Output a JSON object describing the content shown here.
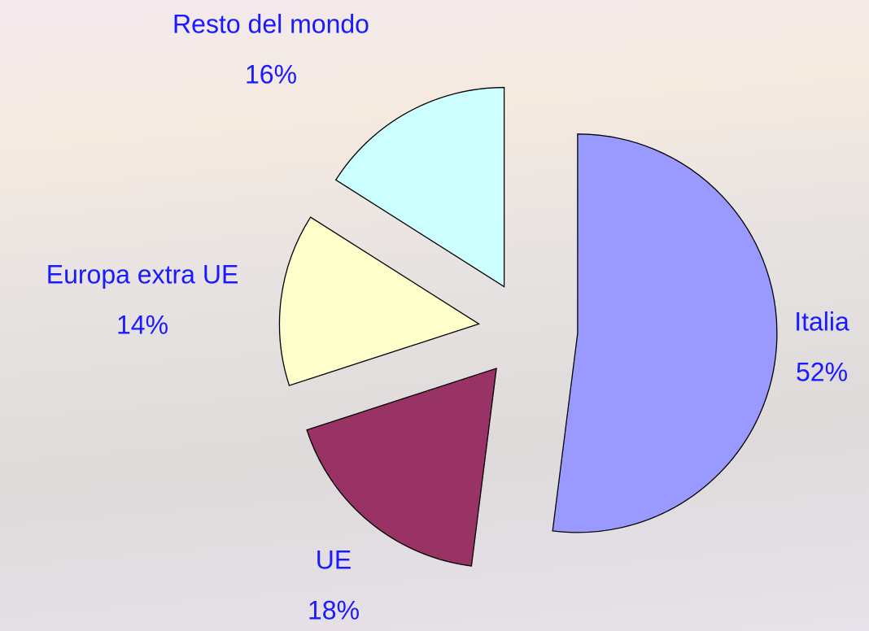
{
  "chart_data": {
    "type": "pie",
    "categories": [
      "Italia",
      "UE",
      "Europa extra UE",
      "Resto del mondo"
    ],
    "values": [
      52,
      18,
      14,
      16
    ],
    "value_labels": [
      "52%",
      "18%",
      "14%",
      "16%"
    ],
    "colors": [
      "#9999ff",
      "#993366",
      "#ffffcc",
      "#ccffff"
    ]
  }
}
